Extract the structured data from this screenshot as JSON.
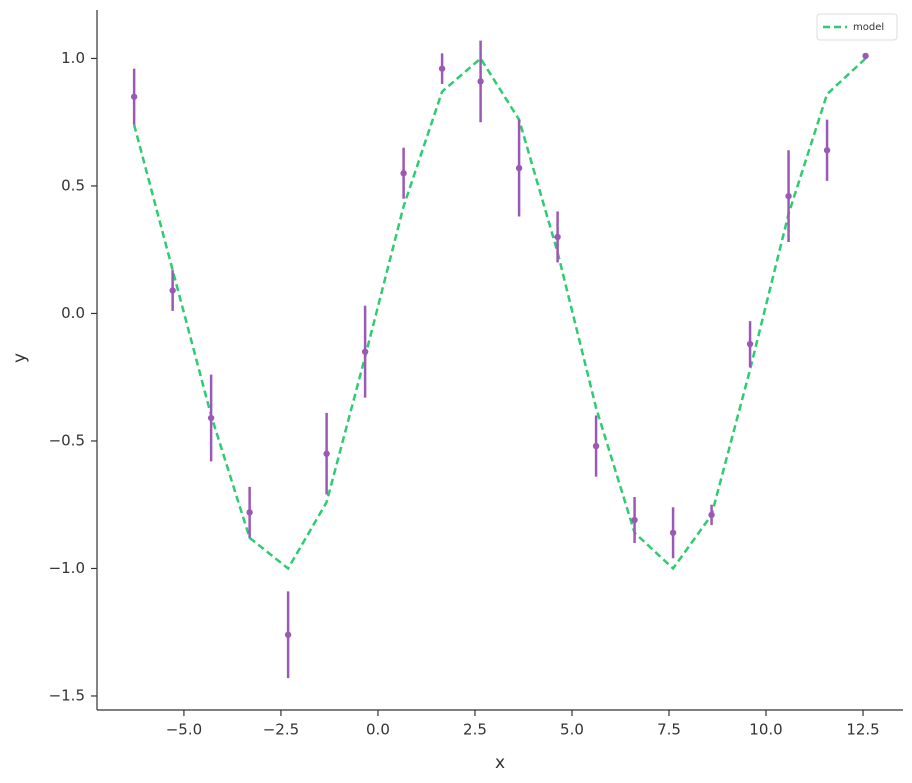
{
  "chart_data": {
    "type": "errorbar",
    "xlabel": "x",
    "ylabel": "y",
    "x": [
      -6.283,
      -5.291,
      -4.299,
      -3.307,
      -2.315,
      -1.323,
      -0.331,
      0.661,
      1.653,
      2.645,
      3.637,
      4.629,
      5.621,
      6.613,
      7.605,
      8.597,
      9.589,
      10.581,
      11.573,
      12.566
    ],
    "series": [
      {
        "name": "model",
        "color": "#2ecc71",
        "style": "dashed",
        "values": [
          0.74,
          0.17,
          -0.4,
          -0.88,
          -1.0,
          -0.74,
          -0.17,
          0.42,
          0.87,
          1.0,
          0.76,
          0.24,
          -0.37,
          -0.86,
          -1.0,
          -0.79,
          -0.22,
          0.39,
          0.86,
          1.0
        ]
      },
      {
        "color": "#9b59b6",
        "style": "errorbar",
        "values": [
          0.85,
          0.09,
          -0.41,
          -0.78,
          -1.26,
          -0.55,
          -0.15,
          0.55,
          0.96,
          0.91,
          0.57,
          0.3,
          -0.52,
          -0.81,
          -0.86,
          -0.79,
          -0.12,
          0.46,
          0.64,
          1.01
        ],
        "errors": [
          0.11,
          0.08,
          0.17,
          0.1,
          0.17,
          0.16,
          0.18,
          0.1,
          0.06,
          0.16,
          0.19,
          0.1,
          0.12,
          0.09,
          0.1,
          0.04,
          0.09,
          0.18,
          0.12,
          0.01
        ]
      }
    ],
    "xlim": [
      -7.24,
      13.53
    ],
    "ylim": [
      -1.555,
      1.19
    ],
    "xticks": [
      {
        "value": -5,
        "label": "−5.0"
      },
      {
        "value": -2.5,
        "label": "−2.5"
      },
      {
        "value": 0,
        "label": "0.0"
      },
      {
        "value": 2.5,
        "label": "2.5"
      },
      {
        "value": 5,
        "label": "5.0"
      },
      {
        "value": 7.5,
        "label": "7.5"
      },
      {
        "value": 10,
        "label": "10.0"
      },
      {
        "value": 12.5,
        "label": "12.5"
      }
    ],
    "yticks": [
      {
        "value": -1.5,
        "label": "−1.5"
      },
      {
        "value": -1,
        "label": "−1.0"
      },
      {
        "value": -0.5,
        "label": "−0.5"
      },
      {
        "value": 0,
        "label": "0.0"
      },
      {
        "value": 0.5,
        "label": "0.5"
      },
      {
        "value": 1,
        "label": "1.0"
      }
    ],
    "legend": "upper right",
    "grid": false
  }
}
